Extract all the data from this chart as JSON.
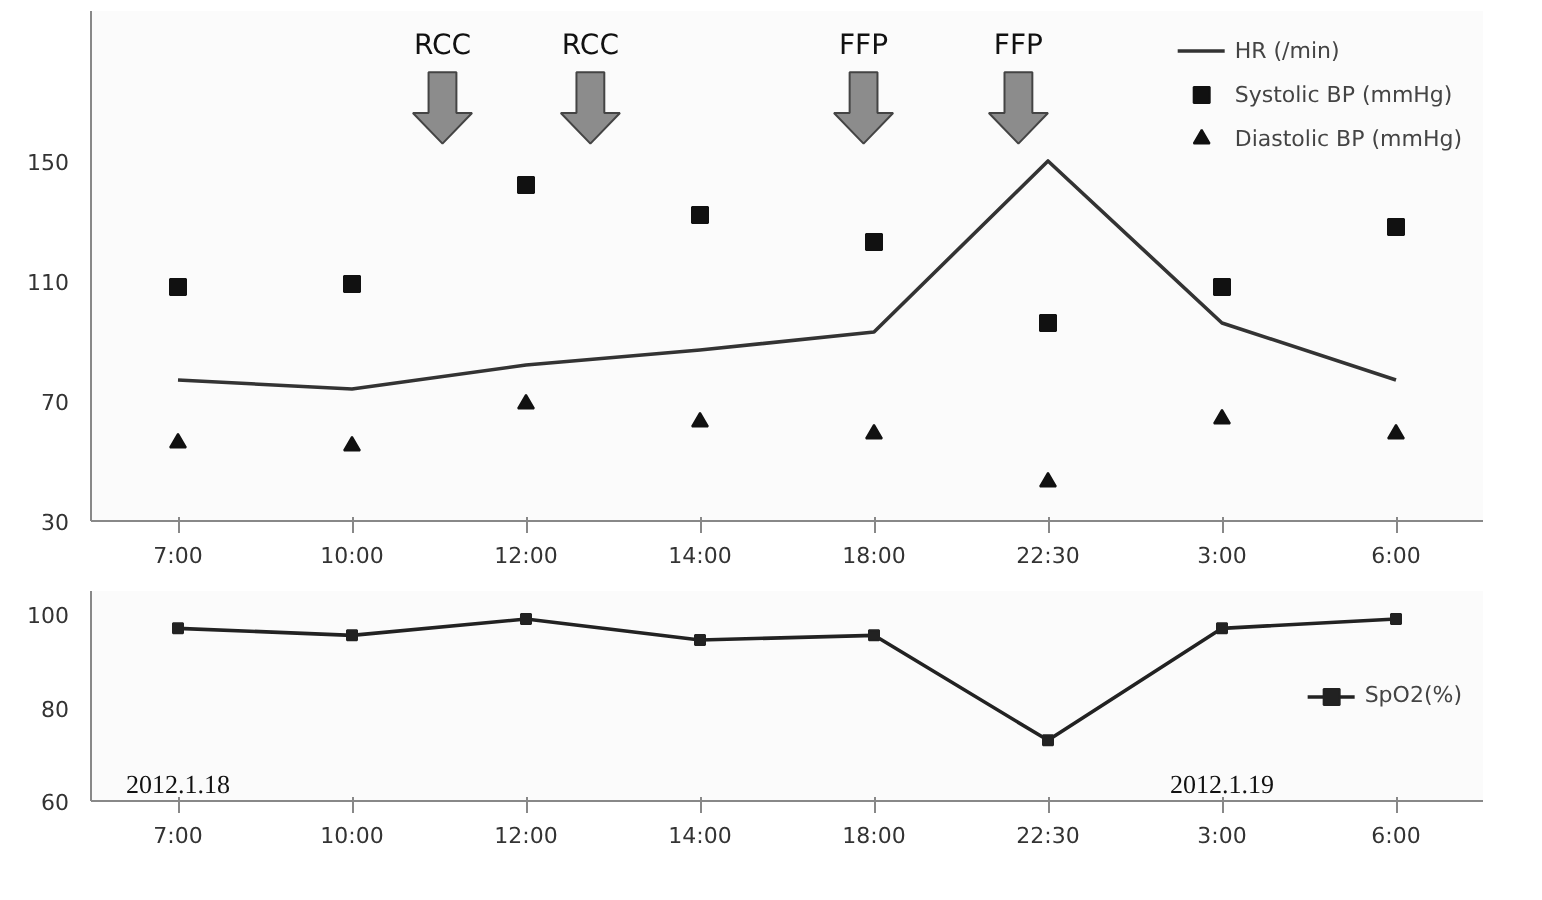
{
  "chart_data": [
    {
      "type": "line",
      "categories": [
        "7:00",
        "10:00",
        "12:00",
        "14:00",
        "18:00",
        "22:30",
        "3:00",
        "6:00"
      ],
      "series": [
        {
          "name": "HR (/min)",
          "type": "line",
          "color": "#333333",
          "marker": "none",
          "values": [
            77,
            74,
            82,
            87,
            93,
            150,
            96,
            77
          ]
        },
        {
          "name": "Systolic BP (mmHg)",
          "type": "scatter",
          "color": "#111111",
          "marker": "square",
          "values": [
            108,
            109,
            142,
            132,
            123,
            96,
            108,
            128
          ]
        },
        {
          "name": "Diastolic BP (mmHg)",
          "type": "scatter",
          "color": "#111111",
          "marker": "triangle",
          "values": [
            56,
            55,
            69,
            63,
            59,
            43,
            64,
            59
          ]
        }
      ],
      "ylim": [
        30,
        200
      ],
      "yticks": [
        30,
        70,
        110,
        150
      ],
      "grid": false,
      "legend": "top right",
      "annotations": [
        "RCC",
        "RCC",
        "FFP",
        "FFP"
      ]
    },
    {
      "type": "line",
      "categories": [
        "7:00",
        "10:00",
        "12:00",
        "14:00",
        "18:00",
        "22:30",
        "3:00",
        "6:00"
      ],
      "series": [
        {
          "name": "SpO2(%)",
          "color": "#222222",
          "marker": "square",
          "values": [
            97,
            95.5,
            99,
            94.5,
            95.5,
            73,
            97,
            99
          ]
        }
      ],
      "ylim": [
        60,
        105
      ],
      "yticks": [
        60,
        80,
        100
      ],
      "grid": false,
      "legend": "right",
      "annotations": [
        "2012.1.18",
        "2012.1.19"
      ]
    }
  ]
}
